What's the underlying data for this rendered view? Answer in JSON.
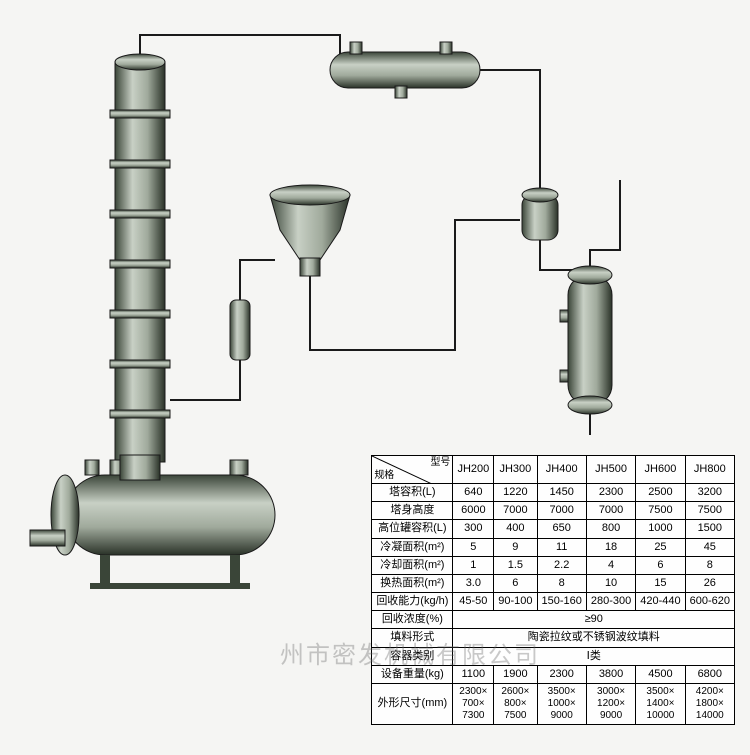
{
  "diagram": {
    "type": "process-flow",
    "background_color": "#f5f5f3",
    "equipment_fill_dark": "#5a6a5c",
    "equipment_fill_light": "#b8c0b6",
    "equipment_stroke": "#2a3028",
    "pipe_stroke": "#1a1a1a",
    "pipe_width": 2
  },
  "table": {
    "corner_label_row": "规格",
    "corner_label_col": "型号",
    "models": [
      "JH200",
      "JH300",
      "JH400",
      "JH500",
      "JH600",
      "JH800"
    ],
    "rows": [
      {
        "label": "塔容积(L)",
        "values": [
          "640",
          "1220",
          "1450",
          "2300",
          "2500",
          "3200"
        ]
      },
      {
        "label": "塔身高度",
        "values": [
          "6000",
          "7000",
          "7000",
          "7000",
          "7500",
          "7500"
        ]
      },
      {
        "label": "高位罐容积(L)",
        "values": [
          "300",
          "400",
          "650",
          "800",
          "1000",
          "1500"
        ]
      },
      {
        "label": "冷凝面积(m²)",
        "values": [
          "5",
          "9",
          "11",
          "18",
          "25",
          "45"
        ]
      },
      {
        "label": "冷却面积(m²)",
        "values": [
          "1",
          "1.5",
          "2.2",
          "4",
          "6",
          "8"
        ]
      },
      {
        "label": "换热面积(m²)",
        "values": [
          "3.0",
          "6",
          "8",
          "10",
          "15",
          "26"
        ]
      },
      {
        "label": "回收能力(kg/h)",
        "values": [
          "45-50",
          "90-100",
          "150-160",
          "280-300",
          "420-440",
          "600-620"
        ]
      }
    ],
    "merged_rows": [
      {
        "label": "回收浓度(%)",
        "value": "≥90"
      },
      {
        "label": "填料形式",
        "value": "陶瓷拉纹或不锈钢波纹填料"
      },
      {
        "label": "容器类别",
        "value": "Ⅰ类"
      }
    ],
    "rows2": [
      {
        "label": "设备重量(kg)",
        "values": [
          "1100",
          "1900",
          "2300",
          "3800",
          "4500",
          "6800"
        ]
      },
      {
        "label": "外形尺寸(mm)",
        "values": [
          "2300×\n700×\n7300",
          "2600×\n800×\n7500",
          "3500×\n1000×\n9000",
          "3000×\n1200×\n9000",
          "3500×\n1400×\n10000",
          "4200×\n1800×\n14000"
        ]
      }
    ]
  },
  "watermark": "州市密发机械有限公司"
}
